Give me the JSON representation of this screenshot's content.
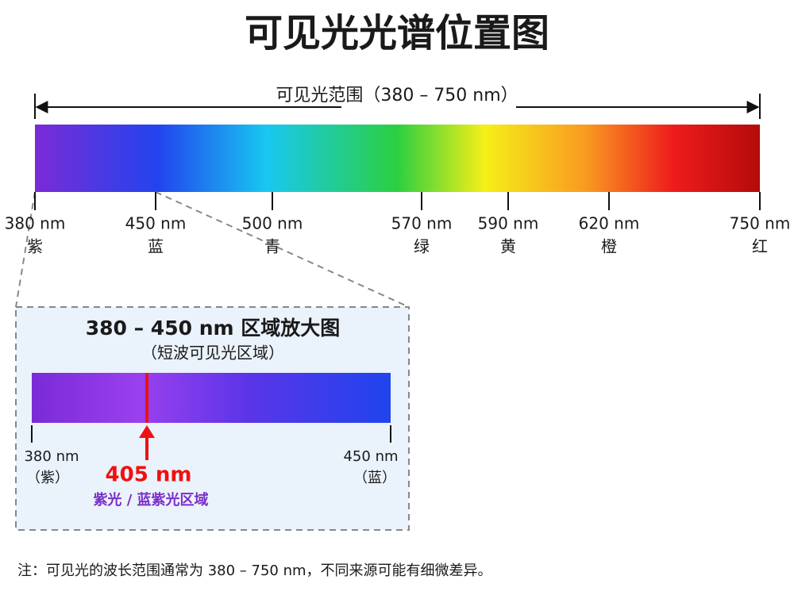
{
  "title": "可见光光谱位置图",
  "range_label": "可见光范围（380 – 750 nm）",
  "spectrum_ticks": [
    {
      "label": "380 nm",
      "color_name": "紫"
    },
    {
      "label": "450 nm",
      "color_name": "蓝"
    },
    {
      "label": "500 nm",
      "color_name": "青"
    },
    {
      "label": "570 nm",
      "color_name": "绿"
    },
    {
      "label": "590 nm",
      "color_name": "黄"
    },
    {
      "label": "620 nm",
      "color_name": "橙"
    },
    {
      "label": "750 nm",
      "color_name": "红"
    }
  ],
  "zoom": {
    "title": "380 – 450 nm 区域放大图",
    "subtitle": "（短波可见光区域）",
    "left_label": "380 nm",
    "left_color": "（紫）",
    "right_label": "450 nm",
    "right_color": "（蓝）",
    "marker_label": "405 nm",
    "marker_note": "紫光 / 蓝紫光区域"
  },
  "note": "注：可见光的波长范围通常为 380 – 750 nm，不同来源可能有细微差异。"
}
